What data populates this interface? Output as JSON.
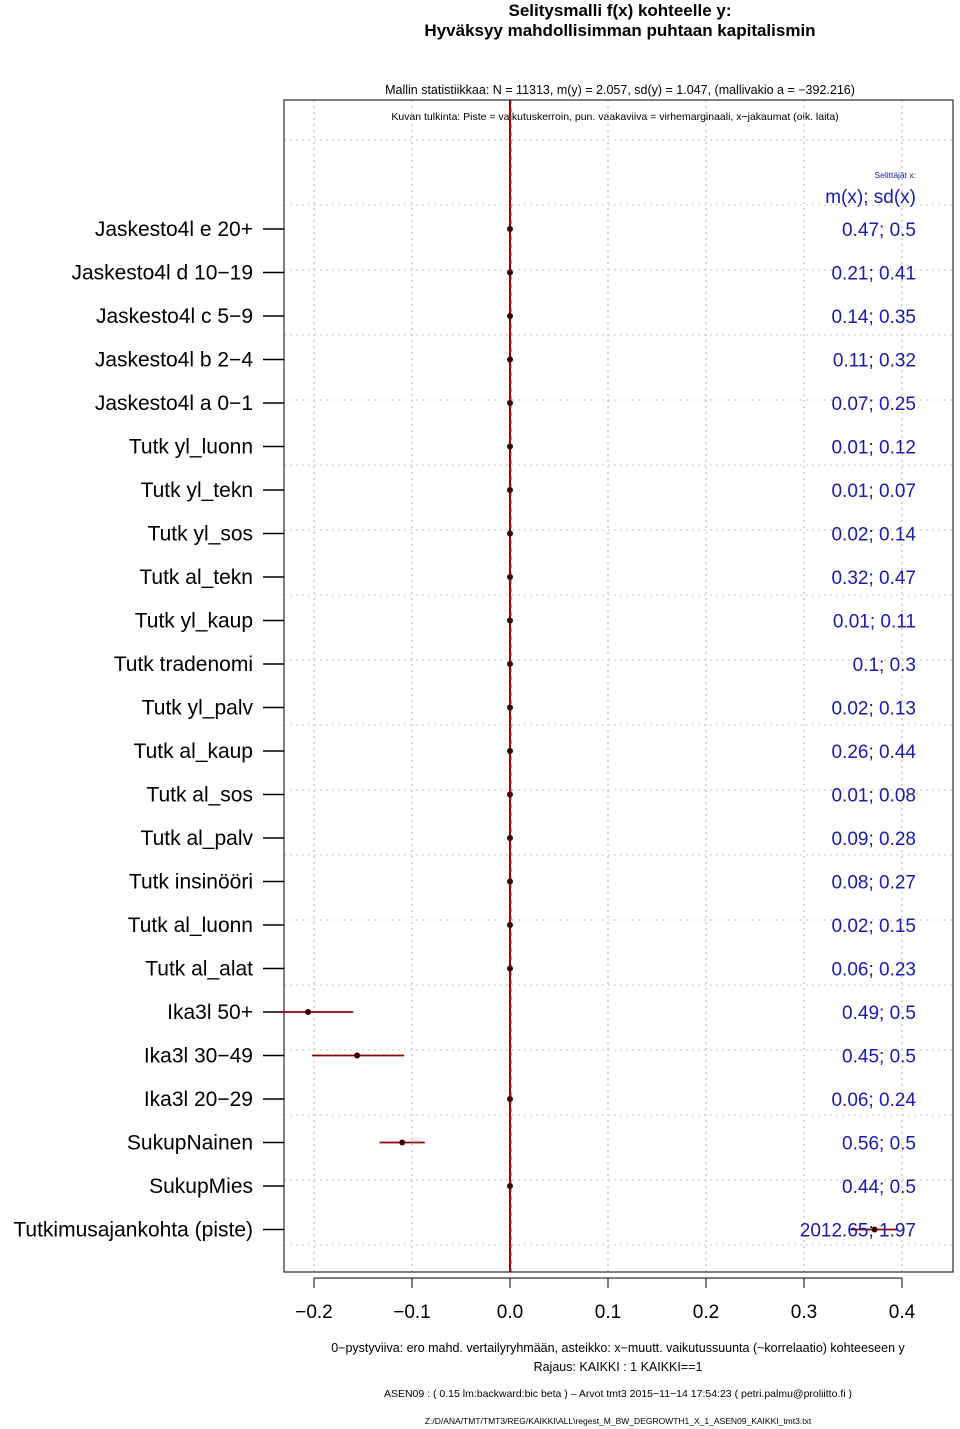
{
  "title_line1": "Selitysmalli f(x) kohteelle y:",
  "title_line2": "Hyväksyy mahdollisimman puhtaan kapitalismin",
  "stats_line": "Mallin statistiikkaa: N = 11313, m(y) = 2.057, sd(y) = 1.047, (mallivakio a = −392.216)",
  "legend_line": "Kuvan tulkinta: Piste = vaikutuskerroin, pun. vaakaviiva = virhemarginaali, x−jakaumat (oik. laita)",
  "right_header_small": "Selittäjät x:",
  "right_header": "m(x); sd(x)",
  "footer": {
    "xaxis_note": "0−pystyviiva: ero mahd. vertailyryhmään, asteikko: x−muutt. vaikutussuunta (~korrelaatio) kohteeseen y",
    "restriction": "Rajaus: KAIKKI : 1  KAIKKI==1",
    "run_info": "ASEN09 : ( 0.15 lm:backward:bic beta )  –  Arvot tmt3 2015−11−14 17:54:23 ( petri.palmu@proliitto.fi )",
    "path": "Z:/D/ANA/TMT/TMT3/REG/KAIKKI\\ALL\\regest_M_BW_DEGROWTH1_X_1_ASEN09_KAIKKI_tmt3.txt"
  },
  "colors": {
    "point": "#3a0000",
    "errorbar": "#8b0000",
    "zero_line": "#8b0000",
    "stats_text": "#1a1aa8",
    "grid": "#b0b0b0"
  },
  "chart_data": {
    "type": "scatter",
    "subtype": "coefficient-plot",
    "xlim": [
      -0.23,
      0.45
    ],
    "x_ticks": [
      -0.2,
      -0.1,
      0.0,
      0.1,
      0.2,
      0.3,
      0.4
    ],
    "x_tick_labels": [
      "−0.2",
      "−0.1",
      "0.0",
      "0.1",
      "0.2",
      "0.3",
      "0.4"
    ],
    "grid": true,
    "rows": [
      {
        "label": "Jaskesto4l e 20+",
        "coef": 0.0,
        "lo": 0.0,
        "hi": 0.0,
        "stats": "0.47; 0.5"
      },
      {
        "label": "Jaskesto4l d 10−19",
        "coef": 0.0,
        "lo": 0.0,
        "hi": 0.0,
        "stats": "0.21; 0.41"
      },
      {
        "label": "Jaskesto4l c 5−9",
        "coef": 0.0,
        "lo": 0.0,
        "hi": 0.0,
        "stats": "0.14; 0.35"
      },
      {
        "label": "Jaskesto4l b 2−4",
        "coef": 0.0,
        "lo": 0.0,
        "hi": 0.0,
        "stats": "0.11; 0.32"
      },
      {
        "label": "Jaskesto4l a 0−1",
        "coef": 0.0,
        "lo": 0.0,
        "hi": 0.0,
        "stats": "0.07; 0.25"
      },
      {
        "label": "Tutk yl_luonn",
        "coef": 0.0,
        "lo": 0.0,
        "hi": 0.0,
        "stats": "0.01; 0.12"
      },
      {
        "label": "Tutk yl_tekn",
        "coef": 0.0,
        "lo": 0.0,
        "hi": 0.0,
        "stats": "0.01; 0.07"
      },
      {
        "label": "Tutk yl_sos",
        "coef": 0.0,
        "lo": 0.0,
        "hi": 0.0,
        "stats": "0.02; 0.14"
      },
      {
        "label": "Tutk al_tekn",
        "coef": 0.0,
        "lo": 0.0,
        "hi": 0.0,
        "stats": "0.32; 0.47"
      },
      {
        "label": "Tutk yl_kaup",
        "coef": 0.0,
        "lo": 0.0,
        "hi": 0.0,
        "stats": "0.01; 0.11"
      },
      {
        "label": "Tutk tradenomi",
        "coef": 0.0,
        "lo": 0.0,
        "hi": 0.0,
        "stats": "0.1; 0.3"
      },
      {
        "label": "Tutk yl_palv",
        "coef": 0.0,
        "lo": 0.0,
        "hi": 0.0,
        "stats": "0.02; 0.13"
      },
      {
        "label": "Tutk al_kaup",
        "coef": 0.0,
        "lo": 0.0,
        "hi": 0.0,
        "stats": "0.26; 0.44"
      },
      {
        "label": "Tutk al_sos",
        "coef": 0.0,
        "lo": 0.0,
        "hi": 0.0,
        "stats": "0.01; 0.08"
      },
      {
        "label": "Tutk al_palv",
        "coef": 0.0,
        "lo": 0.0,
        "hi": 0.0,
        "stats": "0.09; 0.28"
      },
      {
        "label": "Tutk insinööri",
        "coef": 0.0,
        "lo": 0.0,
        "hi": 0.0,
        "stats": "0.08; 0.27"
      },
      {
        "label": "Tutk al_luonn",
        "coef": 0.0,
        "lo": 0.0,
        "hi": 0.0,
        "stats": "0.02; 0.15"
      },
      {
        "label": "Tutk al_alat",
        "coef": 0.0,
        "lo": 0.0,
        "hi": 0.0,
        "stats": "0.06; 0.23"
      },
      {
        "label": "Ika3l 50+",
        "coef": -0.206,
        "lo": -0.235,
        "hi": -0.16,
        "stats": "0.49; 0.5"
      },
      {
        "label": "Ika3l 30−49",
        "coef": -0.156,
        "lo": -0.202,
        "hi": -0.108,
        "stats": "0.45; 0.5"
      },
      {
        "label": "Ika3l 20−29",
        "coef": 0.0,
        "lo": 0.0,
        "hi": 0.0,
        "stats": "0.06; 0.24"
      },
      {
        "label": "SukupNainen",
        "coef": -0.11,
        "lo": -0.133,
        "hi": -0.087,
        "stats": "0.56; 0.5"
      },
      {
        "label": "SukupMies",
        "coef": 0.0,
        "lo": 0.0,
        "hi": 0.0,
        "stats": "0.44; 0.5"
      },
      {
        "label": "Tutkimusajankohta (piste)",
        "coef": 0.372,
        "lo": 0.348,
        "hi": 0.396,
        "stats": "2012.65; 1.97"
      }
    ]
  }
}
